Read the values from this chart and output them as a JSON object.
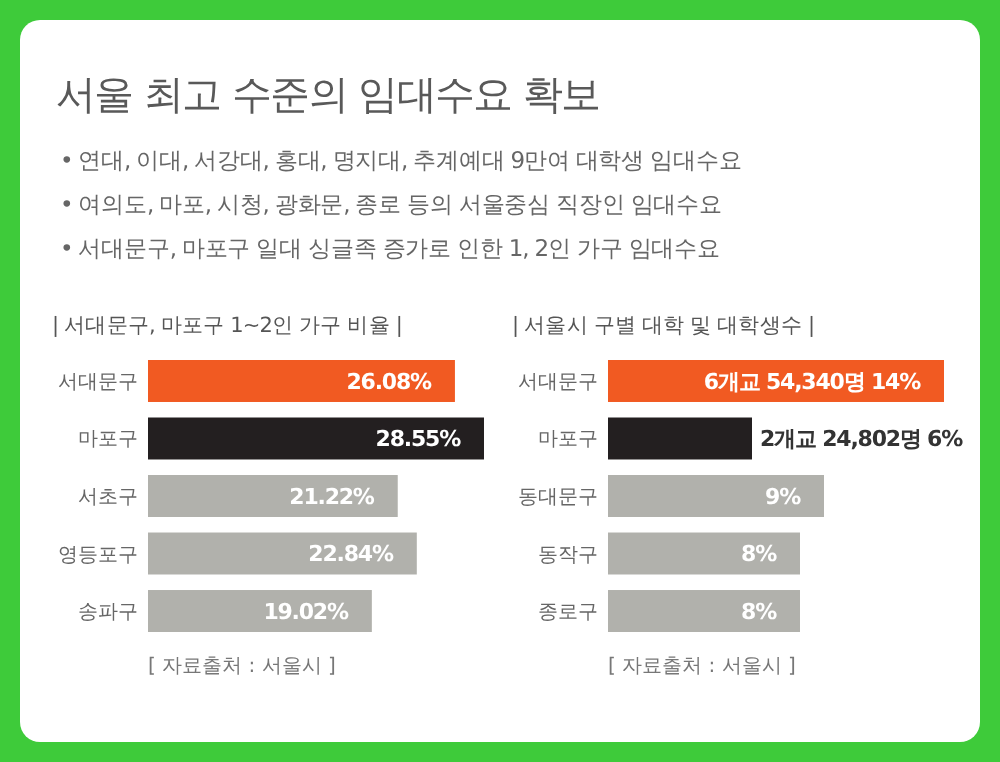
{
  "chart_data": [
    {
      "type": "other",
      "title": "서울 최고 수준의 임대수요 확보",
      "annotations": [
        "• 연대, 이대, 서강대, 홍대, 명지대, 추계예대 9만여 대학생 임대수요",
        "• 여의도, 마포, 시청, 광화문, 종로 등의 서울중심 직장인 임대수요",
        "• 서대문구, 마포구 일대 싱글족 증가로 인한 1, 2인 가구 임대수요"
      ]
    },
    {
      "type": "bar",
      "orientation": "horizontal",
      "title": "| 서대문구, 마포구 1~2인 가구 비율 |",
      "categories": [
        "서대문구",
        "마포구",
        "서초구",
        "영등포구",
        "송파구"
      ],
      "values": [
        26.08,
        28.55,
        21.22,
        22.84,
        19.02
      ],
      "value_labels": [
        "26.08%",
        "28.55%",
        "21.22%",
        "22.84%",
        "19.02%"
      ],
      "colors": [
        "#f15a22",
        "#231f20",
        "#b1b1ac",
        "#b1b1ac",
        "#b1b1ac"
      ],
      "annotations": [
        "[ 자료출처 : 서울시 ]"
      ]
    },
    {
      "type": "bar",
      "orientation": "horizontal",
      "title": "| 서울시 구별 대학 및 대학생수 |",
      "categories": [
        "서대문구",
        "마포구",
        "동대문구",
        "동작구",
        "종로구"
      ],
      "values": [
        14,
        6,
        9,
        8,
        8
      ],
      "value_labels": [
        "6개교 54,340명 14%",
        "2개교 24,802명 6%",
        "9%",
        "8%",
        "8%"
      ],
      "colors": [
        "#f15a22",
        "#231f20",
        "#b1b1ac",
        "#b1b1ac",
        "#b1b1ac"
      ],
      "annotations": [
        "[ 자료출처 : 서울시 ]"
      ]
    }
  ]
}
